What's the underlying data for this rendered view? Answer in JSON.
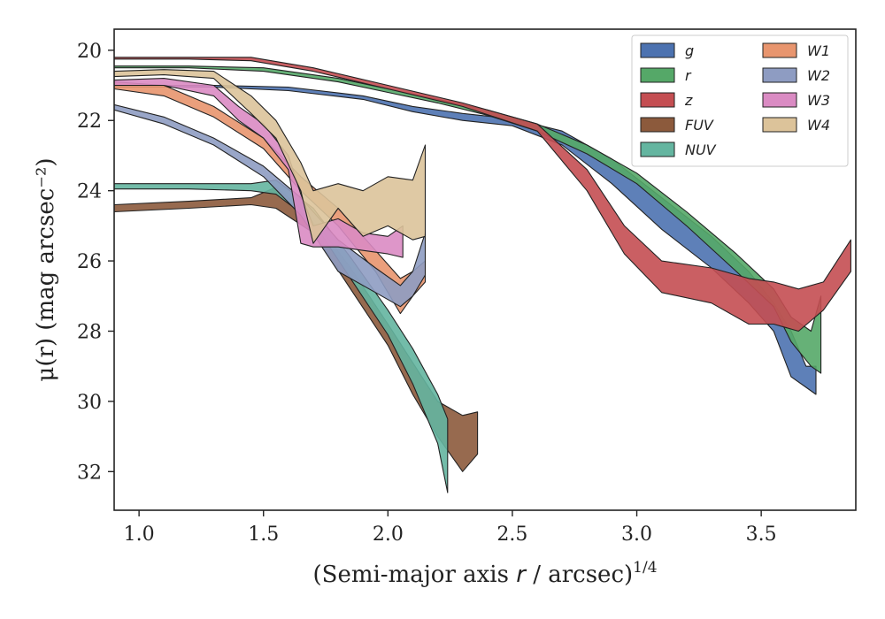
{
  "chart_data": {
    "type": "area",
    "xlabel": "(Semi-major axis",
    "xlabel_var": "r",
    "xlabel_tail": "/ arcsec)",
    "xlabel_exp": "1/4",
    "ylabel": "μ(r) (mag arcsec⁻²)",
    "xlim": [
      0.9,
      3.88
    ],
    "ylim": [
      33.1,
      19.4
    ],
    "y_inverted": true,
    "xticks": [
      1.0,
      1.5,
      2.0,
      2.5,
      3.0,
      3.5
    ],
    "xtick_labels": [
      "1.0",
      "1.5",
      "2.0",
      "2.5",
      "3.0",
      "3.5"
    ],
    "yticks": [
      20,
      22,
      24,
      26,
      28,
      30,
      32
    ],
    "ytick_labels": [
      "20",
      "22",
      "24",
      "26",
      "28",
      "30",
      "32"
    ],
    "grid": false,
    "legend_position": "top-right",
    "series": [
      {
        "name": "g",
        "color": "#4c72b0",
        "x": [
          0.9,
          1.3,
          1.6,
          1.9,
          2.1,
          2.3,
          2.5,
          2.7,
          2.9,
          3.1,
          3.3,
          3.45,
          3.55,
          3.62,
          3.68,
          3.72
        ],
        "lo": [
          21.0,
          21.0,
          21.05,
          21.3,
          21.6,
          21.8,
          21.95,
          22.3,
          23.1,
          24.2,
          25.3,
          26.3,
          27.2,
          28.0,
          29.0,
          29.0
        ],
        "hi": [
          21.05,
          21.05,
          21.15,
          21.4,
          21.75,
          22.0,
          22.15,
          22.7,
          23.8,
          25.1,
          26.2,
          27.2,
          28.0,
          29.3,
          29.6,
          29.8
        ]
      },
      {
        "name": "r",
        "color": "#55a868",
        "x": [
          0.9,
          1.2,
          1.5,
          1.8,
          2.0,
          2.2,
          2.4,
          2.6,
          2.8,
          3.0,
          3.2,
          3.4,
          3.55,
          3.62,
          3.7,
          3.74
        ],
        "lo": [
          20.45,
          20.45,
          20.5,
          20.8,
          21.1,
          21.4,
          21.7,
          22.1,
          22.7,
          23.5,
          24.6,
          25.8,
          26.8,
          27.6,
          28.0,
          27.0
        ],
        "hi": [
          20.5,
          20.5,
          20.6,
          20.9,
          21.2,
          21.5,
          21.85,
          22.3,
          22.95,
          23.8,
          25.0,
          26.3,
          27.3,
          28.3,
          29.0,
          29.2
        ]
      },
      {
        "name": "z",
        "color": "#c44e52",
        "x": [
          0.9,
          1.2,
          1.45,
          1.7,
          2.0,
          2.3,
          2.6,
          2.8,
          2.95,
          3.1,
          3.3,
          3.45,
          3.55,
          3.65,
          3.75,
          3.86
        ],
        "lo": [
          20.2,
          20.2,
          20.2,
          20.5,
          21.0,
          21.5,
          22.1,
          23.4,
          25.0,
          26.0,
          26.2,
          26.5,
          26.6,
          26.8,
          26.6,
          25.4
        ],
        "hi": [
          20.25,
          20.25,
          20.3,
          20.6,
          21.1,
          21.6,
          22.3,
          24.0,
          25.8,
          26.9,
          27.2,
          27.8,
          27.8,
          28.0,
          27.4,
          26.3
        ]
      },
      {
        "name": "FUV",
        "color": "#8c5a3c",
        "x": [
          0.9,
          1.2,
          1.45,
          1.55,
          1.7,
          1.85,
          2.0,
          2.1,
          2.2,
          2.3,
          2.36
        ],
        "lo": [
          24.4,
          24.3,
          24.2,
          23.9,
          24.8,
          26.2,
          27.8,
          28.9,
          30.0,
          30.4,
          30.3
        ],
        "hi": [
          24.6,
          24.5,
          24.4,
          24.5,
          25.2,
          26.8,
          28.4,
          29.8,
          31.0,
          32.0,
          31.5
        ]
      },
      {
        "name": "NUV",
        "color": "#64b5a0",
        "x": [
          0.9,
          1.2,
          1.45,
          1.55,
          1.7,
          1.85,
          2.0,
          2.1,
          2.2,
          2.24
        ],
        "lo": [
          23.8,
          23.8,
          23.8,
          23.7,
          24.5,
          25.9,
          27.4,
          28.5,
          29.8,
          30.5
        ],
        "hi": [
          23.95,
          23.95,
          24.0,
          24.1,
          24.9,
          26.5,
          28.1,
          29.5,
          31.2,
          32.6
        ]
      },
      {
        "name": "W1",
        "color": "#e8956e",
        "x": [
          0.9,
          1.1,
          1.3,
          1.5,
          1.65,
          1.8,
          1.95,
          2.05,
          2.1,
          2.15
        ],
        "lo": [
          20.9,
          21.0,
          21.6,
          22.5,
          23.6,
          24.5,
          25.7,
          26.5,
          26.3,
          26.0
        ],
        "hi": [
          21.1,
          21.3,
          21.9,
          22.8,
          24.0,
          25.0,
          26.3,
          27.5,
          27.0,
          26.6
        ]
      },
      {
        "name": "W2",
        "color": "#8e9cc2",
        "x": [
          0.9,
          1.1,
          1.3,
          1.5,
          1.65,
          1.8,
          1.95,
          2.05,
          2.1,
          2.15
        ],
        "lo": [
          21.55,
          21.9,
          22.5,
          23.3,
          24.2,
          25.4,
          26.2,
          26.7,
          26.3,
          25.2
        ],
        "hi": [
          21.7,
          22.1,
          22.7,
          23.6,
          24.7,
          26.3,
          26.9,
          27.3,
          27.0,
          26.4
        ]
      },
      {
        "name": "W3",
        "color": "#da8bc3",
        "x": [
          0.9,
          1.1,
          1.3,
          1.4,
          1.5,
          1.6,
          1.65,
          1.7,
          1.8,
          1.9,
          2.0,
          2.06
        ],
        "lo": [
          20.85,
          20.8,
          21.0,
          21.6,
          22.1,
          23.0,
          24.1,
          25.0,
          24.8,
          25.2,
          25.3,
          25.0
        ],
        "hi": [
          21.0,
          21.0,
          21.3,
          22.0,
          22.5,
          23.4,
          25.5,
          25.6,
          25.6,
          25.7,
          25.8,
          25.9
        ]
      },
      {
        "name": "W4",
        "color": "#dcc39a",
        "x": [
          0.9,
          1.1,
          1.3,
          1.45,
          1.55,
          1.65,
          1.7,
          1.8,
          1.9,
          2.0,
          2.1,
          2.15
        ],
        "lo": [
          20.6,
          20.55,
          20.6,
          21.3,
          22.0,
          23.2,
          24.0,
          23.8,
          24.0,
          23.6,
          23.7,
          22.7
        ],
        "hi": [
          20.75,
          20.7,
          20.8,
          21.8,
          22.5,
          24.0,
          25.5,
          24.5,
          25.3,
          25.0,
          25.4,
          25.3
        ]
      }
    ]
  }
}
